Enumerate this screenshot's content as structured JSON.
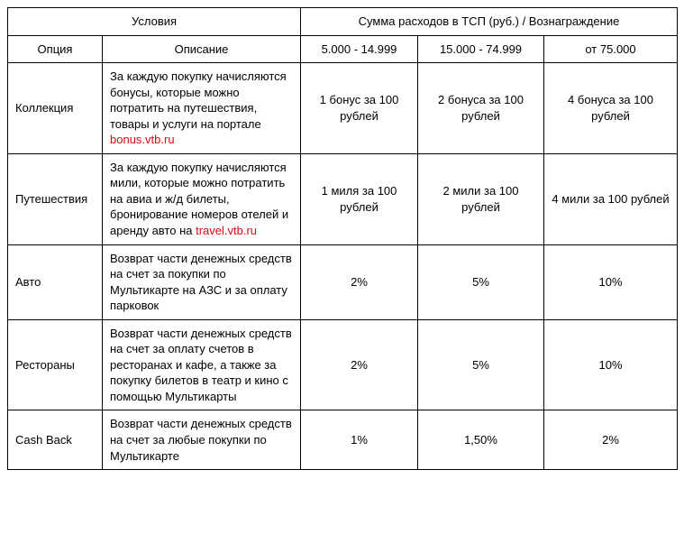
{
  "headers": {
    "conditions": "Условия",
    "option": "Опция",
    "description": "Описание",
    "rewards_title": "Сумма расходов в ТСП (руб.) / Вознаграждение",
    "tier1": "5.000 - 14.999",
    "tier2": "15.000 - 74.999",
    "tier3": "от 75.000"
  },
  "rows": [
    {
      "option": "Коллекция",
      "desc_pre": "За каждую покупку начисляются бонусы, которые можно потратить на путешествия, товары и услуги на портале ",
      "link_text": "bonus.vtb.ru",
      "link_color": "#e30613",
      "desc_post": "",
      "t1": "1 бонус за 100 рублей",
      "t2": "2 бонуса за 100 рублей",
      "t3": "4 бонуса за 100 рублей"
    },
    {
      "option": "Путешествия",
      "desc_pre": "За каждую покупку начисляются мили, которые можно потратить на авиа и ж/д билеты, бронирование номеров отелей и аренду авто на ",
      "link_text": "travel.vtb.ru",
      "link_color": "#e30613",
      "desc_post": "",
      "t1": "1 миля за 100 рублей",
      "t2": "2 мили за 100 рублей",
      "t3": "4 мили за 100 рублей"
    },
    {
      "option": "Авто",
      "desc_pre": "Возврат части денежных средств на счет за покупки по Мультикарте на АЗС и за оплату парковок",
      "link_text": "",
      "link_color": "",
      "desc_post": "",
      "t1": "2%",
      "t2": "5%",
      "t3": "10%"
    },
    {
      "option": "Рестораны",
      "desc_pre": "Возврат части денежных средств на счет за оплату счетов в ресторанах и кафе, а также за покупку билетов в театр и кино с помощью Мультикарты",
      "link_text": "",
      "link_color": "",
      "desc_post": "",
      "t1": "2%",
      "t2": "5%",
      "t3": "10%"
    },
    {
      "option": "Cash Back",
      "desc_pre": "Возврат части денежных средств на счет за любые покупки по Мультикарте",
      "link_text": "",
      "link_color": "",
      "desc_post": "",
      "t1": "1%",
      "t2": "1,50%",
      "t3": "2%"
    }
  ]
}
